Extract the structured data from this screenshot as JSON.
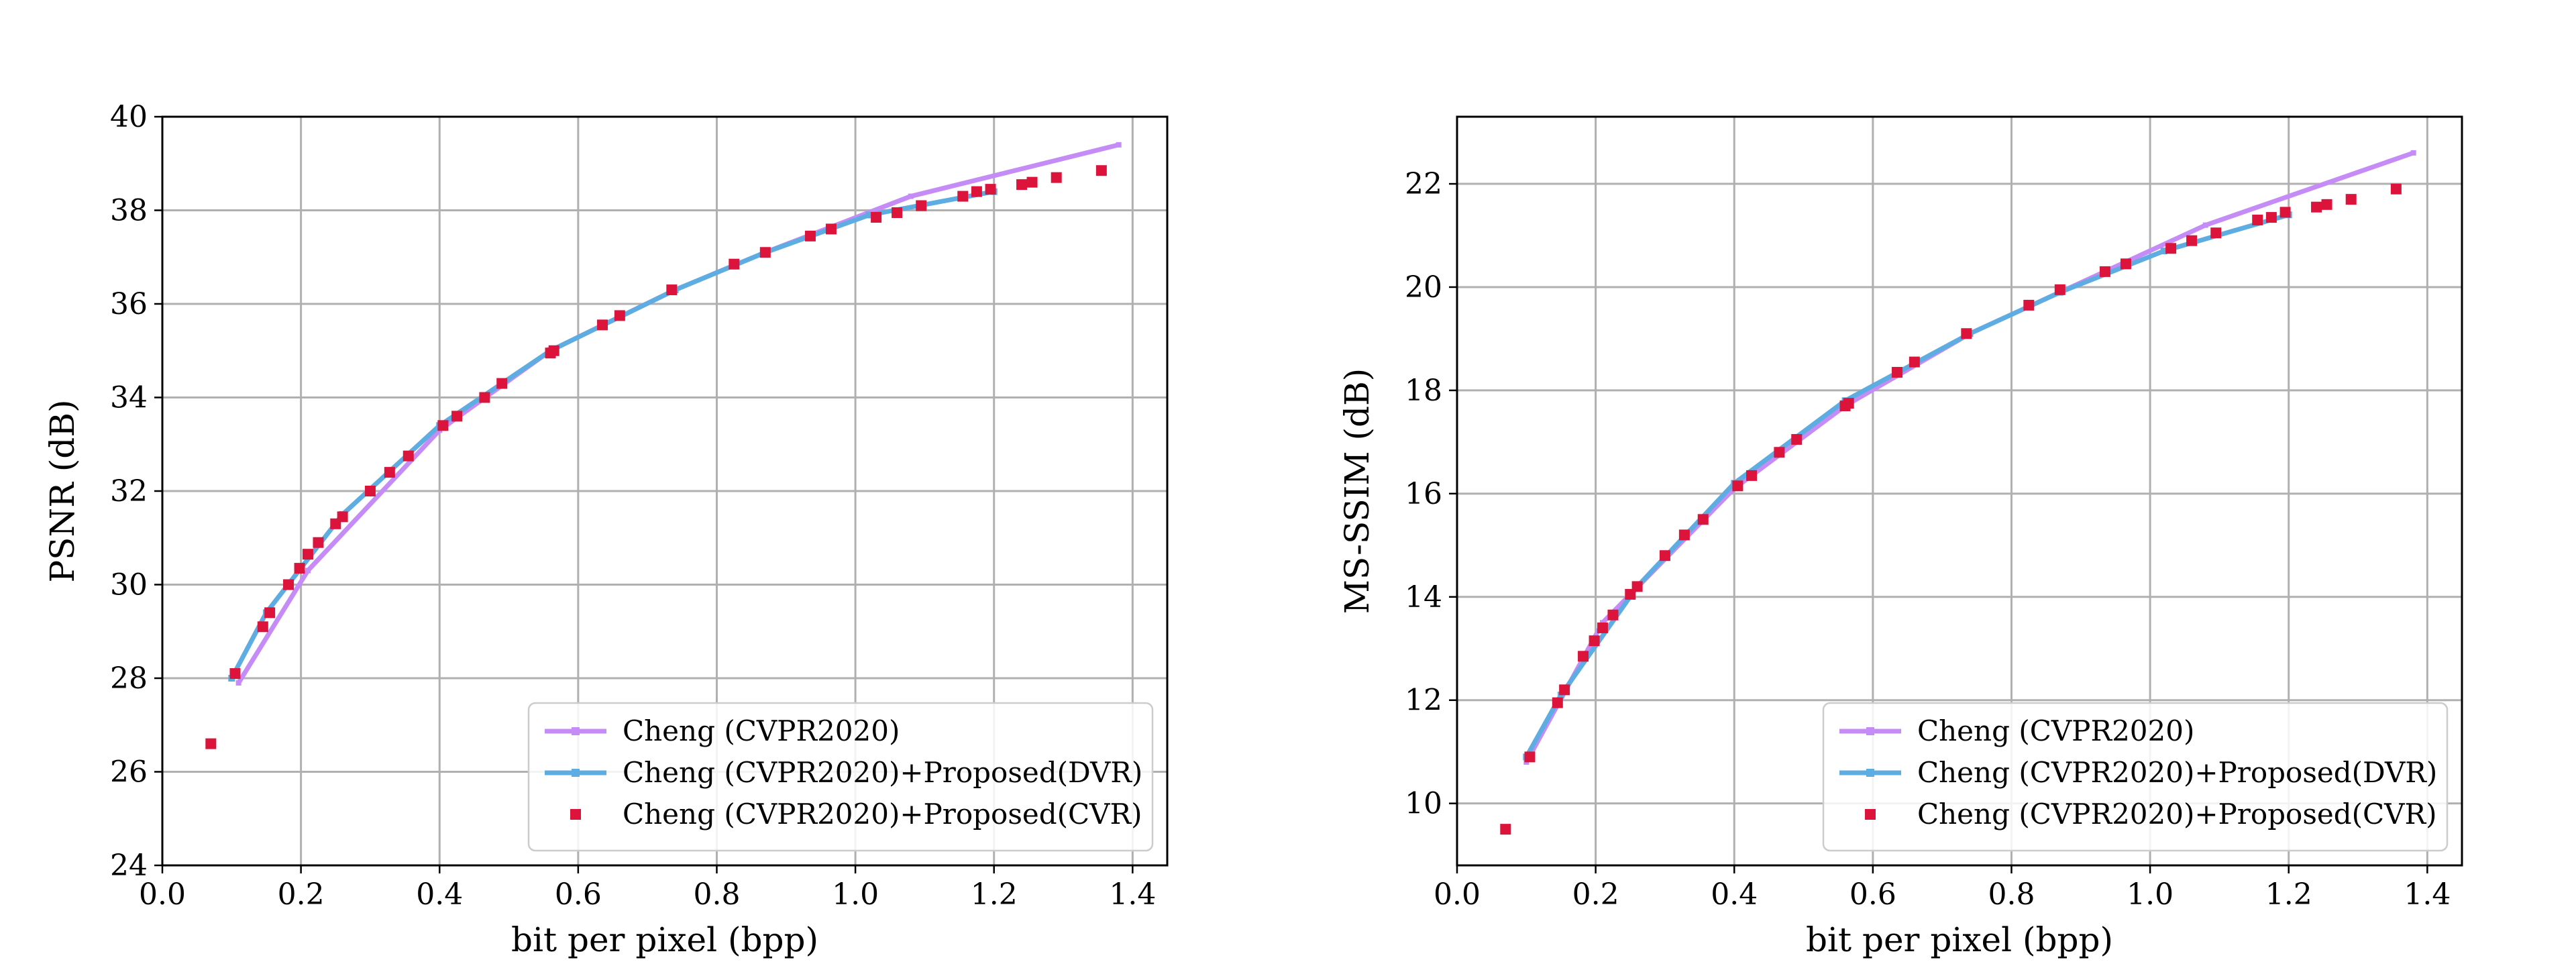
{
  "chart_data": [
    {
      "type": "line",
      "ylabel": "PSNR (dB)",
      "xlabel": "bit per pixel (bpp)",
      "xlim": [
        0.0,
        1.45
      ],
      "ylim": [
        24,
        40
      ],
      "xticks": [
        "0.0",
        "0.2",
        "0.4",
        "0.6",
        "0.8",
        "1.0",
        "1.2",
        "1.4"
      ],
      "yticks": [
        "24",
        "26",
        "28",
        "30",
        "32",
        "34",
        "36",
        "38",
        "40"
      ],
      "grid": true,
      "legend_position": "lower-right",
      "series": [
        {
          "name": "Cheng (CVPR2020)",
          "style": "line",
          "color": "#c58bf7",
          "x": [
            0.11,
            0.21,
            0.4,
            0.56,
            0.74,
            0.87,
            1.08,
            1.38
          ],
          "y": [
            27.9,
            30.3,
            33.3,
            35.0,
            36.3,
            37.1,
            38.3,
            39.4
          ]
        },
        {
          "name": "Cheng (CVPR2020)+Proposed(DVR)",
          "style": "line",
          "color": "#5dade2",
          "x": [
            0.1,
            0.15,
            0.26,
            0.4,
            0.56,
            0.74,
            0.87,
            1.02,
            1.2
          ],
          "y": [
            28.0,
            29.4,
            31.5,
            33.4,
            35.0,
            36.3,
            37.1,
            37.9,
            38.4
          ]
        },
        {
          "name": "Cheng (CVPR2020)+Proposed(CVR)",
          "style": "scatter",
          "color": "#dc143c",
          "x": [
            0.07,
            0.105,
            0.145,
            0.155,
            0.182,
            0.198,
            0.21,
            0.225,
            0.25,
            0.26,
            0.3,
            0.328,
            0.355,
            0.405,
            0.425,
            0.465,
            0.49,
            0.56,
            0.565,
            0.635,
            0.66,
            0.735,
            0.825,
            0.87,
            0.935,
            0.965,
            1.03,
            1.06,
            1.095,
            1.155,
            1.175,
            1.195,
            1.24,
            1.255,
            1.29,
            1.355
          ],
          "y": [
            26.6,
            28.1,
            29.1,
            29.4,
            30.0,
            30.35,
            30.65,
            30.9,
            31.3,
            31.45,
            32.0,
            32.4,
            32.75,
            33.4,
            33.6,
            34.0,
            34.3,
            34.95,
            35.0,
            35.55,
            35.75,
            36.3,
            36.85,
            37.1,
            37.45,
            37.6,
            37.85,
            37.95,
            38.1,
            38.3,
            38.4,
            38.45,
            38.55,
            38.6,
            38.7,
            38.85
          ]
        }
      ]
    },
    {
      "type": "line",
      "ylabel": "MS-SSIM (dB)",
      "xlabel": "bit per pixel (bpp)",
      "xlim": [
        0.0,
        1.45
      ],
      "ylim": [
        8.8,
        23.3
      ],
      "xticks": [
        "0.0",
        "0.2",
        "0.4",
        "0.6",
        "0.8",
        "1.0",
        "1.2",
        "1.4"
      ],
      "yticks": [
        "10",
        "12",
        "14",
        "16",
        "18",
        "20",
        "22"
      ],
      "grid": true,
      "legend_position": "lower-right",
      "series": [
        {
          "name": "Cheng (CVPR2020)",
          "style": "line",
          "color": "#c58bf7",
          "x": [
            0.1,
            0.21,
            0.4,
            0.56,
            0.74,
            0.87,
            1.08,
            1.38
          ],
          "y": [
            10.8,
            13.5,
            16.1,
            17.7,
            19.1,
            19.9,
            21.2,
            22.6
          ]
        },
        {
          "name": "Cheng (CVPR2020)+Proposed(DVR)",
          "style": "line",
          "color": "#5dade2",
          "x": [
            0.1,
            0.15,
            0.26,
            0.4,
            0.56,
            0.74,
            0.87,
            1.02,
            1.2
          ],
          "y": [
            10.9,
            12.1,
            14.2,
            16.2,
            17.8,
            19.1,
            19.9,
            20.7,
            21.4
          ]
        },
        {
          "name": "Cheng (CVPR2020)+Proposed(CVR)",
          "style": "scatter",
          "color": "#dc143c",
          "x": [
            0.07,
            0.105,
            0.145,
            0.155,
            0.182,
            0.198,
            0.21,
            0.225,
            0.25,
            0.26,
            0.3,
            0.328,
            0.355,
            0.405,
            0.425,
            0.465,
            0.49,
            0.56,
            0.565,
            0.635,
            0.66,
            0.735,
            0.825,
            0.87,
            0.935,
            0.965,
            1.03,
            1.06,
            1.095,
            1.155,
            1.175,
            1.195,
            1.24,
            1.255,
            1.29,
            1.355
          ],
          "y": [
            9.5,
            10.9,
            11.95,
            12.2,
            12.85,
            13.15,
            13.4,
            13.65,
            14.05,
            14.2,
            14.8,
            15.2,
            15.5,
            16.15,
            16.35,
            16.8,
            17.05,
            17.7,
            17.75,
            18.35,
            18.55,
            19.1,
            19.65,
            19.95,
            20.3,
            20.45,
            20.75,
            20.9,
            21.05,
            21.3,
            21.35,
            21.45,
            21.55,
            21.6,
            21.7,
            21.9
          ]
        }
      ]
    }
  ]
}
